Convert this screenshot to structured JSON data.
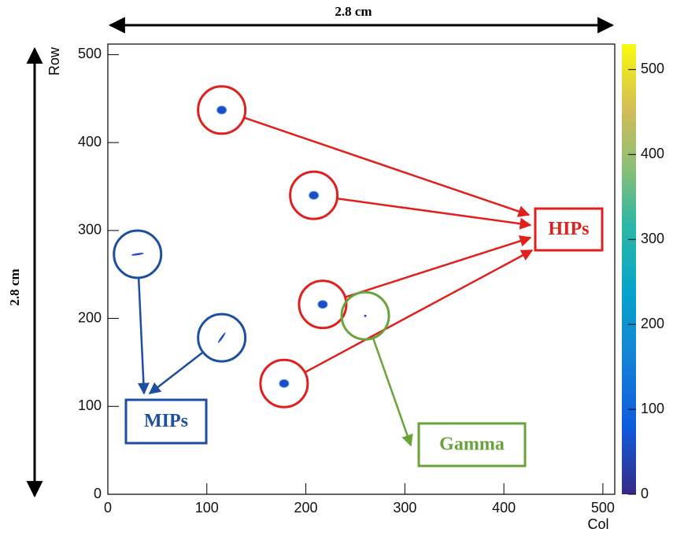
{
  "chart_data": {
    "type": "scatter",
    "x_label": "Col",
    "y_label": "Row",
    "scale_x_label": "2.8 cm",
    "scale_y_label": "2.8 cm",
    "xlim": [
      0,
      512
    ],
    "xticks": [
      0,
      100,
      200,
      300,
      400,
      500
    ],
    "ylim": [
      0,
      512
    ],
    "yticks": [
      0,
      100,
      200,
      300,
      400,
      500
    ],
    "zlim": [
      0,
      530
    ],
    "zticks": [
      0,
      100,
      200,
      300,
      400,
      500
    ],
    "series": [
      {
        "name": "HIPs",
        "color": "#e0201c",
        "x": [
          115,
          208,
          217,
          178
        ],
        "y": [
          437,
          340,
          216,
          126
        ]
      },
      {
        "name": "MIPs",
        "color": "#1c4fa0",
        "x": [
          30,
          115
        ],
        "y": [
          273,
          178
        ]
      },
      {
        "name": "Gamma",
        "color": "#6aa33a",
        "x": [
          260
        ],
        "y": [
          203
        ]
      }
    ]
  }
}
